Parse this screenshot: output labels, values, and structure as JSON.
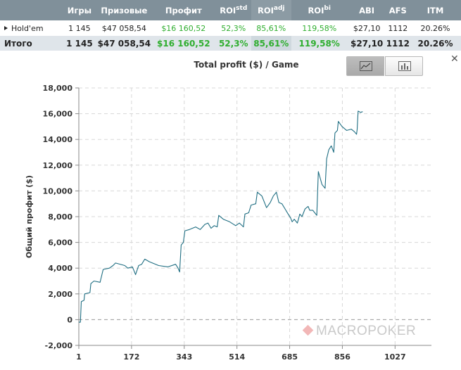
{
  "stats": {
    "headers": [
      {
        "main": "",
        "sup": ""
      },
      {
        "main": "Игры",
        "sup": ""
      },
      {
        "main": "Призовые",
        "sup": ""
      },
      {
        "main": "Профит",
        "sup": ""
      },
      {
        "main": "ROI",
        "sup": "std"
      },
      {
        "main": "ROI",
        "sup": "adj"
      },
      {
        "main": "ROI",
        "sup": "bi"
      },
      {
        "main": "ABI",
        "sup": ""
      },
      {
        "main": "AFS",
        "sup": ""
      },
      {
        "main": "ITM",
        "sup": ""
      }
    ],
    "game_row": {
      "label": "Hold'em",
      "games": "1 145",
      "prizes": "$47 058,54",
      "profit": "$16 160,52",
      "roi_std": "52,3%",
      "roi_adj": "85,61%",
      "roi_bi": "119,58%",
      "abi": "$27,10",
      "afs": "1112",
      "itm": "20.26%"
    },
    "total_row": {
      "label": "Итого",
      "games": "1 145",
      "prizes": "$47 058,54",
      "profit": "$16 160,52",
      "roi_std": "52,3%",
      "roi_adj": "85,61%",
      "roi_bi": "119,58%",
      "abi": "$27,10",
      "afs": "1112",
      "itm": "20.26%"
    }
  },
  "chart": {
    "title": "Total profit ($) / Game",
    "close_icon": "close-icon",
    "toggle": {
      "active": "line-chart-icon",
      "inactive": "bar-chart-icon"
    },
    "watermark": "MACROPOKER"
  },
  "colors": {
    "header_bg": "#80909a",
    "total_row_bg": "#dfe5ea",
    "positive": "#2fae2f",
    "line": "#1f6e82"
  },
  "chart_data": {
    "type": "line",
    "title": "Total profit ($) / Game",
    "xlabel": "",
    "ylabel": "Общий профит ($)",
    "xlim": [
      1,
      1145
    ],
    "ylim": [
      -2000,
      18000
    ],
    "x_ticks": [
      "1",
      "172",
      "343",
      "514",
      "685",
      "856",
      "1027"
    ],
    "y_ticks": [
      "-2,000",
      "0",
      "2,000",
      "4,000",
      "6,000",
      "8,000",
      "10,000",
      "12,000",
      "14,000",
      "16,000",
      "18,000"
    ],
    "grid": true,
    "series": [
      {
        "color": "#1f6e82",
        "points": [
          [
            1,
            -200
          ],
          [
            6,
            -200
          ],
          [
            9,
            1400
          ],
          [
            18,
            1500
          ],
          [
            20,
            2000
          ],
          [
            37,
            2100
          ],
          [
            40,
            2800
          ],
          [
            50,
            3000
          ],
          [
            70,
            2900
          ],
          [
            80,
            3900
          ],
          [
            100,
            4000
          ],
          [
            112,
            4200
          ],
          [
            120,
            4400
          ],
          [
            150,
            4200
          ],
          [
            160,
            4000
          ],
          [
            175,
            4100
          ],
          [
            185,
            3500
          ],
          [
            195,
            4200
          ],
          [
            205,
            4300
          ],
          [
            215,
            4700
          ],
          [
            230,
            4500
          ],
          [
            260,
            4200
          ],
          [
            290,
            4100
          ],
          [
            315,
            4300
          ],
          [
            323,
            4000
          ],
          [
            328,
            3700
          ],
          [
            333,
            5800
          ],
          [
            340,
            6000
          ],
          [
            345,
            6900
          ],
          [
            360,
            7000
          ],
          [
            380,
            7200
          ],
          [
            395,
            7000
          ],
          [
            410,
            7400
          ],
          [
            420,
            7500
          ],
          [
            430,
            7100
          ],
          [
            440,
            7300
          ],
          [
            450,
            7200
          ],
          [
            455,
            8100
          ],
          [
            470,
            7800
          ],
          [
            490,
            7600
          ],
          [
            510,
            7300
          ],
          [
            522,
            7500
          ],
          [
            535,
            7200
          ],
          [
            540,
            8200
          ],
          [
            552,
            8300
          ],
          [
            560,
            8900
          ],
          [
            575,
            9000
          ],
          [
            580,
            9900
          ],
          [
            595,
            9600
          ],
          [
            610,
            8700
          ],
          [
            622,
            9100
          ],
          [
            632,
            9600
          ],
          [
            642,
            9900
          ],
          [
            650,
            9100
          ],
          [
            660,
            9000
          ],
          [
            670,
            8600
          ],
          [
            680,
            8200
          ],
          [
            688,
            7900
          ],
          [
            693,
            7600
          ],
          [
            700,
            7800
          ],
          [
            710,
            7500
          ],
          [
            718,
            8200
          ],
          [
            725,
            8000
          ],
          [
            735,
            8600
          ],
          [
            745,
            8800
          ],
          [
            750,
            8500
          ],
          [
            760,
            8500
          ],
          [
            773,
            8100
          ],
          [
            778,
            11500
          ],
          [
            790,
            10500
          ],
          [
            800,
            10200
          ],
          [
            805,
            12500
          ],
          [
            812,
            13200
          ],
          [
            820,
            13500
          ],
          [
            828,
            13000
          ],
          [
            832,
            14500
          ],
          [
            840,
            14700
          ],
          [
            843,
            15400
          ],
          [
            855,
            15000
          ],
          [
            870,
            14700
          ],
          [
            885,
            14800
          ],
          [
            895,
            14600
          ],
          [
            902,
            14400
          ],
          [
            904,
            14800
          ],
          [
            907,
            16200
          ],
          [
            915,
            16100
          ],
          [
            922,
            16160
          ]
        ]
      }
    ]
  }
}
